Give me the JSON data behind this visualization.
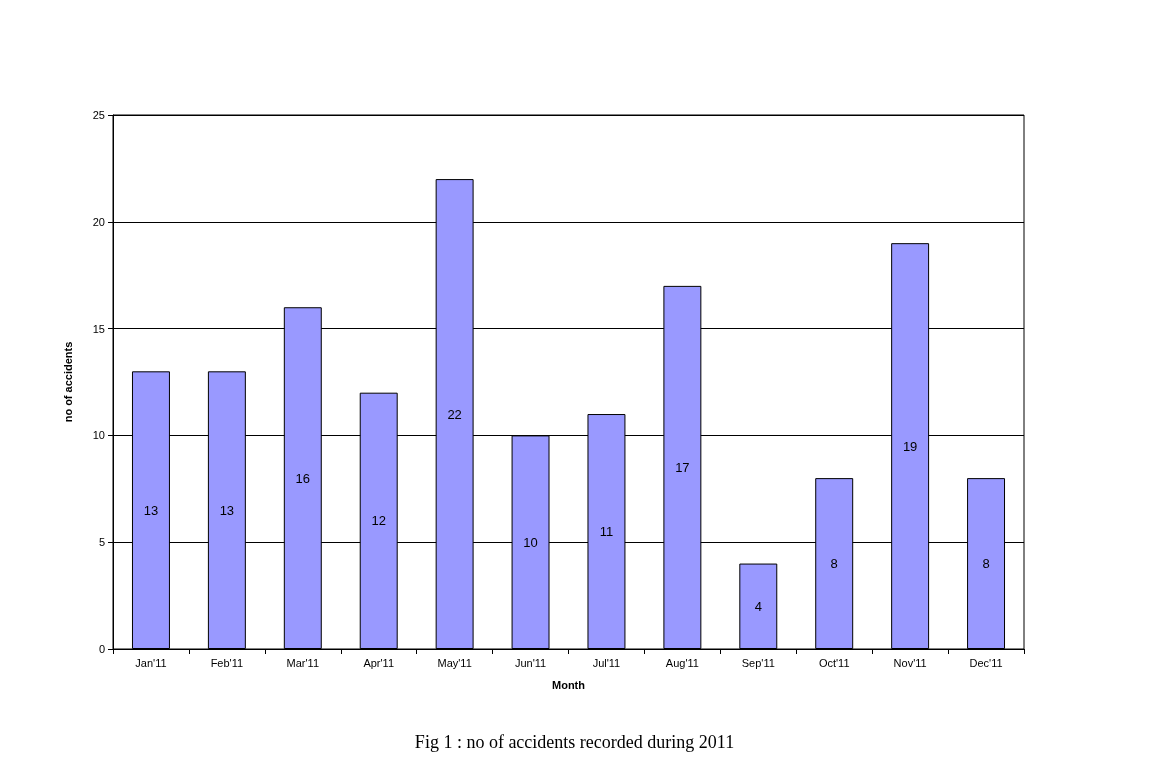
{
  "chart_data": {
    "type": "bar",
    "xlabel": "Month",
    "ylabel": "no of accidents",
    "categories": [
      "Jan'11",
      "Feb'11",
      "Mar'11",
      "Apr'11",
      "May'11",
      "Jun'11",
      "Jul'11",
      "Aug'11",
      "Sep'11",
      "Oct'11",
      "Nov'11",
      "Dec'11"
    ],
    "values": [
      13,
      13,
      16,
      12,
      22,
      10,
      11,
      17,
      4,
      8,
      19,
      8
    ],
    "color": "#9999ff",
    "ylim": [
      0,
      25
    ],
    "yticks": [
      0,
      5,
      10,
      15,
      20,
      25
    ],
    "grid": "y",
    "data_labels": true,
    "annotations": [
      "Fig 1 : no of accidents recorded during 2011"
    ]
  }
}
